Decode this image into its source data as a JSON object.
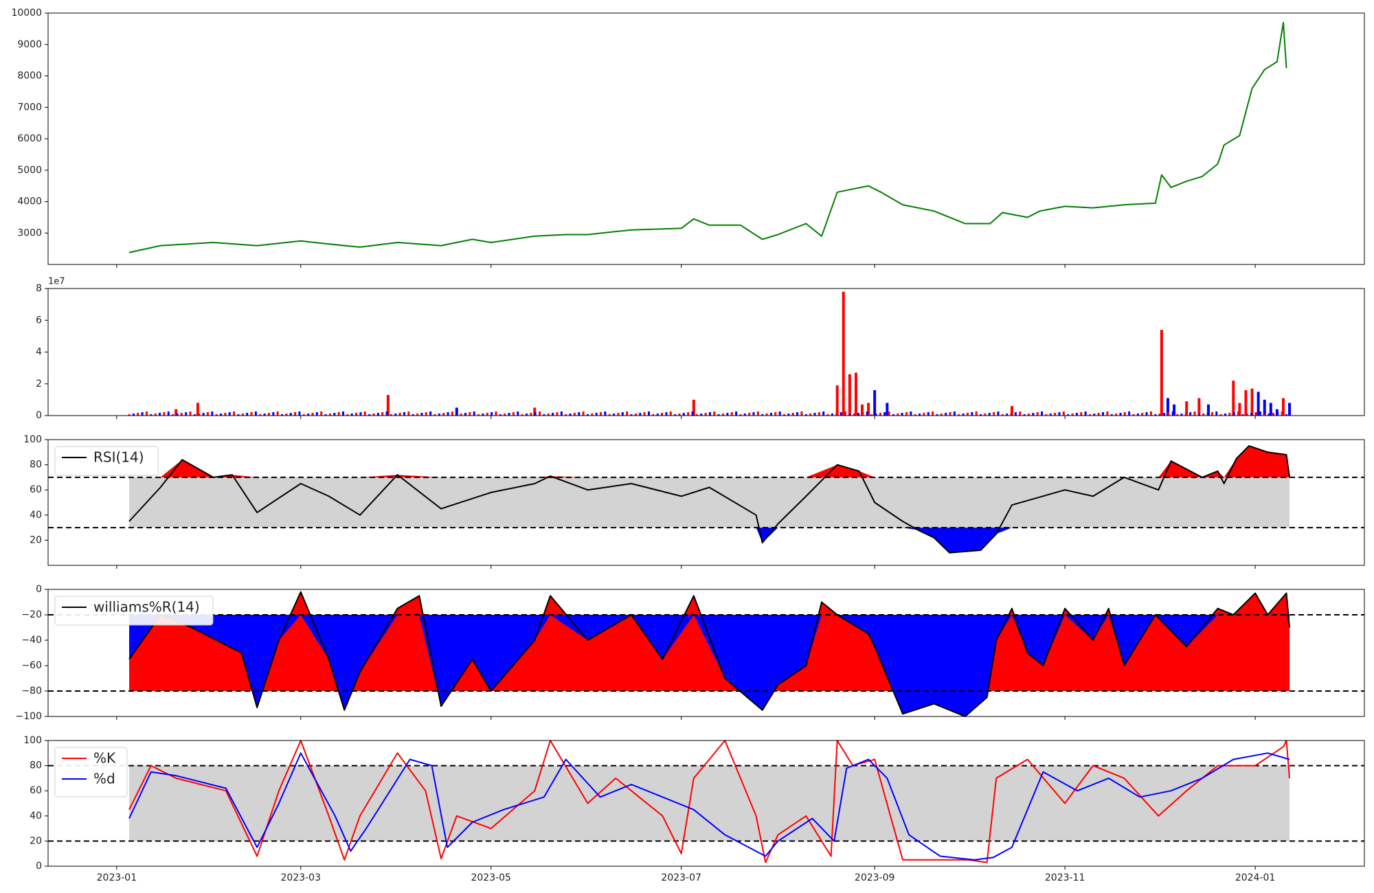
{
  "chart_data": [
    {
      "panel": "price",
      "type": "line",
      "x_start": "2023-01-05",
      "x_end": "2024-01-12",
      "ylim": [
        2000,
        10000
      ],
      "yticks": [
        3000,
        4000,
        5000,
        6000,
        7000,
        8000,
        9000,
        10000
      ],
      "color": "#008000",
      "series": [
        {
          "x": [
            "2023-01-05",
            "2023-01-15",
            "2023-02-01",
            "2023-02-15",
            "2023-03-01",
            "2023-03-10",
            "2023-03-20",
            "2023-04-01",
            "2023-04-15",
            "2023-04-25",
            "2023-05-01",
            "2023-05-15",
            "2023-05-25",
            "2023-06-01",
            "2023-06-15",
            "2023-07-01",
            "2023-07-05",
            "2023-07-10",
            "2023-07-20",
            "2023-07-27",
            "2023-08-01",
            "2023-08-10",
            "2023-08-15",
            "2023-08-20",
            "2023-08-25",
            "2023-08-30",
            "2023-09-03",
            "2023-09-10",
            "2023-09-20",
            "2023-09-30",
            "2023-10-08",
            "2023-10-12",
            "2023-10-20",
            "2023-10-24",
            "2023-11-01",
            "2023-11-10",
            "2023-11-20",
            "2023-11-30",
            "2023-12-02",
            "2023-12-05",
            "2023-12-10",
            "2023-12-15",
            "2023-12-20",
            "2023-12-22",
            "2023-12-27",
            "2023-12-31",
            "2024-01-02",
            "2024-01-04",
            "2024-01-08",
            "2024-01-10",
            "2024-01-11"
          ],
          "y": [
            2380,
            2600,
            2700,
            2600,
            2750,
            2650,
            2550,
            2700,
            2600,
            2800,
            2700,
            2900,
            2950,
            2950,
            3100,
            3150,
            3450,
            3250,
            3250,
            2800,
            2950,
            3300,
            2900,
            4300,
            4400,
            4500,
            4300,
            3900,
            3700,
            3300,
            3300,
            3650,
            3500,
            3700,
            3850,
            3800,
            3900,
            3950,
            4850,
            4450,
            4650,
            4800,
            5200,
            5800,
            6100,
            7600,
            7900,
            8200,
            8450,
            9700,
            8250
          ]
        }
      ]
    },
    {
      "panel": "volume",
      "type": "bar",
      "exponent_label": "1e7",
      "ylim": [
        0,
        8
      ],
      "yticks": [
        0,
        2,
        4,
        6,
        8
      ],
      "colors": {
        "up": "#ff0000",
        "down": "#0000ff"
      },
      "x": [
        "2023-01-20",
        "2023-01-27",
        "2023-03-29",
        "2023-04-20",
        "2023-05-15",
        "2023-07-05",
        "2023-08-20",
        "2023-08-22",
        "2023-08-24",
        "2023-08-26",
        "2023-08-28",
        "2023-08-30",
        "2023-09-01",
        "2023-09-05",
        "2023-10-15",
        "2023-12-02",
        "2023-12-04",
        "2023-12-06",
        "2023-12-10",
        "2023-12-14",
        "2023-12-17",
        "2023-12-25",
        "2023-12-27",
        "2023-12-29",
        "2023-12-31",
        "2024-01-02",
        "2024-01-04",
        "2024-01-06",
        "2024-01-08",
        "2024-01-10",
        "2024-01-12"
      ],
      "values": [
        0.4,
        0.8,
        1.3,
        0.5,
        0.5,
        1.0,
        1.9,
        7.8,
        2.6,
        2.7,
        0.7,
        0.8,
        1.6,
        0.8,
        0.6,
        5.4,
        1.1,
        0.7,
        0.9,
        1.1,
        0.7,
        2.2,
        0.8,
        1.6,
        1.7,
        1.5,
        1.0,
        0.8,
        0.4,
        1.1,
        0.8
      ],
      "direction": [
        "up",
        "up",
        "up",
        "down",
        "up",
        "up",
        "up",
        "up",
        "up",
        "up",
        "up",
        "up",
        "down",
        "down",
        "up",
        "up",
        "down",
        "down",
        "up",
        "up",
        "down",
        "up",
        "up",
        "up",
        "up",
        "down",
        "down",
        "down",
        "down",
        "up",
        "down"
      ]
    },
    {
      "panel": "rsi",
      "type": "line",
      "legend": [
        "RSI(14)"
      ],
      "ylim": [
        0,
        100
      ],
      "yticks": [
        20,
        40,
        60,
        80,
        100
      ],
      "thresholds": [
        30,
        70
      ],
      "series": [
        {
          "name": "RSI(14)",
          "x": [
            "2023-01-05",
            "2023-01-15",
            "2023-01-22",
            "2023-02-01",
            "2023-02-07",
            "2023-02-15",
            "2023-03-01",
            "2023-03-10",
            "2023-03-20",
            "2023-04-01",
            "2023-04-15",
            "2023-05-01",
            "2023-05-15",
            "2023-05-20",
            "2023-06-01",
            "2023-06-15",
            "2023-07-01",
            "2023-07-10",
            "2023-07-25",
            "2023-07-27",
            "2023-08-01",
            "2023-08-10",
            "2023-08-20",
            "2023-08-27",
            "2023-09-01",
            "2023-09-10",
            "2023-09-15",
            "2023-09-20",
            "2023-09-25",
            "2023-10-05",
            "2023-10-10",
            "2023-10-15",
            "2023-11-01",
            "2023-11-10",
            "2023-11-20",
            "2023-12-01",
            "2023-12-05",
            "2023-12-15",
            "2023-12-20",
            "2023-12-22",
            "2023-12-26",
            "2023-12-30",
            "2024-01-05",
            "2024-01-11",
            "2024-01-12"
          ],
          "y": [
            35,
            62,
            84,
            70,
            72,
            42,
            65,
            55,
            40,
            72,
            45,
            58,
            65,
            71,
            60,
            65,
            55,
            62,
            40,
            18,
            33,
            55,
            80,
            75,
            50,
            35,
            28,
            22,
            10,
            12,
            25,
            48,
            60,
            55,
            70,
            60,
            83,
            70,
            75,
            65,
            85,
            95,
            90,
            88,
            70
          ]
        }
      ]
    },
    {
      "panel": "williams",
      "type": "line",
      "legend": [
        "williams%R(14)"
      ],
      "ylim": [
        -100,
        0
      ],
      "yticks": [
        0,
        -20,
        -40,
        -60,
        -80,
        -100
      ],
      "thresholds": [
        -20,
        -80
      ],
      "series": [
        {
          "name": "williams%R(14)",
          "x": [
            "2023-01-05",
            "2023-01-15",
            "2023-01-25",
            "2023-02-10",
            "2023-02-15",
            "2023-02-22",
            "2023-03-01",
            "2023-03-10",
            "2023-03-15",
            "2023-03-20",
            "2023-04-01",
            "2023-04-08",
            "2023-04-15",
            "2023-04-25",
            "2023-05-01",
            "2023-05-15",
            "2023-05-20",
            "2023-06-01",
            "2023-06-15",
            "2023-06-25",
            "2023-07-05",
            "2023-07-15",
            "2023-07-27",
            "2023-08-01",
            "2023-08-10",
            "2023-08-15",
            "2023-08-20",
            "2023-08-30",
            "2023-09-01",
            "2023-09-10",
            "2023-09-20",
            "2023-09-30",
            "2023-10-07",
            "2023-10-10",
            "2023-10-15",
            "2023-10-20",
            "2023-10-25",
            "2023-11-01",
            "2023-11-10",
            "2023-11-15",
            "2023-11-20",
            "2023-11-30",
            "2023-12-10",
            "2023-12-20",
            "2023-12-25",
            "2024-01-01",
            "2024-01-05",
            "2024-01-11",
            "2024-01-12"
          ],
          "y": [
            -55,
            -20,
            -30,
            -50,
            -93,
            -40,
            -2,
            -55,
            -95,
            -65,
            -15,
            -5,
            -92,
            -55,
            -80,
            -40,
            -5,
            -40,
            -20,
            -55,
            -5,
            -70,
            -95,
            -75,
            -60,
            -10,
            -20,
            -35,
            -45,
            -98,
            -90,
            -100,
            -85,
            -40,
            -15,
            -50,
            -60,
            -15,
            -40,
            -15,
            -60,
            -20,
            -45,
            -15,
            -20,
            -3,
            -20,
            -3,
            -30
          ]
        }
      ]
    },
    {
      "panel": "stochastic",
      "type": "line",
      "legend": [
        "%K",
        "%d"
      ],
      "ylim": [
        0,
        100
      ],
      "yticks": [
        0,
        20,
        40,
        60,
        80,
        100
      ],
      "thresholds": [
        20,
        80
      ],
      "series": [
        {
          "name": "%K",
          "color": "#ff0000",
          "x": [
            "2023-01-05",
            "2023-01-12",
            "2023-01-20",
            "2023-02-05",
            "2023-02-15",
            "2023-02-22",
            "2023-03-01",
            "2023-03-10",
            "2023-03-15",
            "2023-03-20",
            "2023-04-01",
            "2023-04-10",
            "2023-04-15",
            "2023-04-20",
            "2023-05-01",
            "2023-05-15",
            "2023-05-20",
            "2023-06-01",
            "2023-06-10",
            "2023-06-15",
            "2023-06-25",
            "2023-07-01",
            "2023-07-05",
            "2023-07-15",
            "2023-07-25",
            "2023-07-28",
            "2023-08-01",
            "2023-08-10",
            "2023-08-18",
            "2023-08-20",
            "2023-08-25",
            "2023-09-01",
            "2023-09-10",
            "2023-09-20",
            "2023-10-01",
            "2023-10-07",
            "2023-10-10",
            "2023-10-20",
            "2023-11-01",
            "2023-11-10",
            "2023-11-20",
            "2023-12-01",
            "2023-12-10",
            "2023-12-20",
            "2024-01-01",
            "2024-01-10",
            "2024-01-11",
            "2024-01-12"
          ],
          "y": [
            45,
            80,
            70,
            60,
            8,
            60,
            100,
            40,
            5,
            40,
            90,
            60,
            6,
            40,
            30,
            60,
            100,
            50,
            70,
            60,
            40,
            10,
            70,
            100,
            40,
            3,
            25,
            40,
            8,
            100,
            80,
            85,
            5,
            5,
            5,
            3,
            70,
            85,
            50,
            80,
            70,
            40,
            60,
            80,
            80,
            95,
            100,
            70
          ]
        },
        {
          "name": "%d",
          "color": "#0000ff",
          "x": [
            "2023-01-05",
            "2023-01-12",
            "2023-01-20",
            "2023-02-05",
            "2023-02-15",
            "2023-02-22",
            "2023-03-01",
            "2023-03-12",
            "2023-03-17",
            "2023-03-22",
            "2023-04-05",
            "2023-04-12",
            "2023-04-17",
            "2023-04-25",
            "2023-05-05",
            "2023-05-18",
            "2023-05-25",
            "2023-06-05",
            "2023-06-15",
            "2023-06-25",
            "2023-07-05",
            "2023-07-15",
            "2023-07-28",
            "2023-08-01",
            "2023-08-12",
            "2023-08-19",
            "2023-08-23",
            "2023-08-30",
            "2023-09-05",
            "2023-09-12",
            "2023-09-22",
            "2023-10-03",
            "2023-10-09",
            "2023-10-15",
            "2023-10-25",
            "2023-11-05",
            "2023-11-15",
            "2023-11-25",
            "2023-12-05",
            "2023-12-15",
            "2023-12-25",
            "2024-01-05",
            "2024-01-12"
          ],
          "y": [
            38,
            75,
            72,
            62,
            15,
            50,
            90,
            40,
            12,
            30,
            85,
            80,
            15,
            35,
            45,
            55,
            85,
            55,
            65,
            55,
            45,
            25,
            8,
            20,
            38,
            20,
            78,
            85,
            70,
            25,
            8,
            5,
            7,
            15,
            75,
            60,
            70,
            55,
            60,
            70,
            85,
            90,
            85
          ]
        }
      ]
    }
  ],
  "x_axis": {
    "tick_labels": [
      "2023-01",
      "2023-03",
      "2023-05",
      "2023-07",
      "2023-09",
      "2023-11",
      "2024-01"
    ]
  }
}
